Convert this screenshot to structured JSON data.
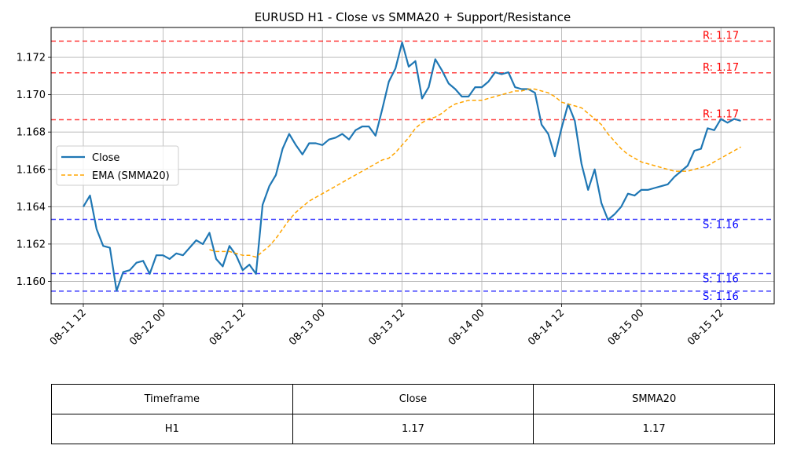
{
  "chart_data": {
    "type": "line",
    "title": "EURUSD H1 - Close vs SMMA20 + Support/Resistance",
    "xlabel": "",
    "ylabel": "",
    "x_start": "2025-08-11 12:00",
    "x_tick_labels": [
      "08-11 12",
      "08-12 00",
      "08-12 12",
      "08-13 00",
      "08-13 12",
      "08-14 00",
      "08-14 12",
      "08-15 00",
      "08-15 12"
    ],
    "ylim": [
      1.1588,
      1.1736
    ],
    "y_ticks": [
      1.16,
      1.162,
      1.164,
      1.166,
      1.168,
      1.17,
      1.172
    ],
    "y_tick_labels": [
      "1.160",
      "1.162",
      "1.164",
      "1.166",
      "1.168",
      "1.170",
      "1.172"
    ],
    "grid": true,
    "legend": {
      "position": "center-left",
      "entries": [
        "Close",
        "EMA (SMMA20)"
      ]
    },
    "series": [
      {
        "name": "Close",
        "color": "#1f77b4",
        "style": "solid",
        "start_offset_hours": 0,
        "values": [
          1.164,
          1.1646,
          1.1628,
          1.1619,
          1.1618,
          1.1595,
          1.1605,
          1.1606,
          1.161,
          1.1611,
          1.1604,
          1.1614,
          1.1614,
          1.1612,
          1.1615,
          1.1614,
          1.1618,
          1.1622,
          1.162,
          1.1626,
          1.1612,
          1.1608,
          1.1619,
          1.1614,
          1.1606,
          1.1609,
          1.1604,
          1.1641,
          1.1651,
          1.1657,
          1.1671,
          1.1679,
          1.1673,
          1.1668,
          1.1674,
          1.1674,
          1.1673,
          1.1676,
          1.1677,
          1.1679,
          1.1676,
          1.1681,
          1.1683,
          1.1683,
          1.1678,
          1.1692,
          1.1707,
          1.1714,
          1.1728,
          1.1715,
          1.1718,
          1.1698,
          1.1704,
          1.1719,
          1.1713,
          1.1706,
          1.1703,
          1.1699,
          1.1699,
          1.1704,
          1.1704,
          1.1707,
          1.1712,
          1.1711,
          1.1712,
          1.1704,
          1.1703,
          1.1703,
          1.1701,
          1.1684,
          1.1679,
          1.1667,
          1.1682,
          1.1695,
          1.1686,
          1.1663,
          1.1649,
          1.166,
          1.1642,
          1.1633,
          1.1636,
          1.164,
          1.1647,
          1.1646,
          1.1649,
          1.1649,
          1.165,
          1.1651,
          1.1652,
          1.1656,
          1.1659,
          1.1662,
          1.167,
          1.1671,
          1.1682,
          1.1681,
          1.1687,
          1.1685,
          1.1687,
          1.1686
        ]
      },
      {
        "name": "EMA (SMMA20)",
        "color": "#ffa500",
        "style": "dashed",
        "start_offset_hours": 19,
        "values": [
          1.1617,
          1.1616,
          1.1616,
          1.1616,
          1.1615,
          1.1614,
          1.1614,
          1.1613,
          1.1616,
          1.1619,
          1.1623,
          1.1628,
          1.1633,
          1.1637,
          1.164,
          1.1643,
          1.1645,
          1.1647,
          1.1649,
          1.1651,
          1.1653,
          1.1655,
          1.1657,
          1.1659,
          1.1661,
          1.1663,
          1.1665,
          1.1666,
          1.1669,
          1.1673,
          1.1677,
          1.1682,
          1.1685,
          1.1687,
          1.1688,
          1.169,
          1.1693,
          1.1695,
          1.1696,
          1.1697,
          1.1697,
          1.1697,
          1.1698,
          1.1699,
          1.17,
          1.1701,
          1.1702,
          1.1702,
          1.1703,
          1.1703,
          1.1702,
          1.1701,
          1.1699,
          1.1696,
          1.1695,
          1.1694,
          1.1693,
          1.169,
          1.1687,
          1.1684,
          1.1679,
          1.1675,
          1.1671,
          1.1668,
          1.1666,
          1.1664,
          1.1663,
          1.1662,
          1.1661,
          1.166,
          1.1659,
          1.1659,
          1.1659,
          1.166,
          1.1661,
          1.1662,
          1.1664,
          1.1666,
          1.1668,
          1.167,
          1.1672
        ]
      }
    ],
    "resistance_levels": [
      {
        "value": 1.17287,
        "label": "R: 1.17"
      },
      {
        "value": 1.17117,
        "label": "R: 1.17"
      },
      {
        "value": 1.16866,
        "label": "R: 1.17"
      }
    ],
    "support_levels": [
      {
        "value": 1.16332,
        "label": "S: 1.16"
      },
      {
        "value": 1.16042,
        "label": "S: 1.16"
      },
      {
        "value": 1.15948,
        "label": "S: 1.16"
      }
    ],
    "resistance_color": "#ff0000",
    "support_color": "#0000ff"
  },
  "table": {
    "headers": [
      "Timeframe",
      "Close",
      "SMMA20"
    ],
    "row": [
      "H1",
      "1.17",
      "1.17"
    ]
  }
}
